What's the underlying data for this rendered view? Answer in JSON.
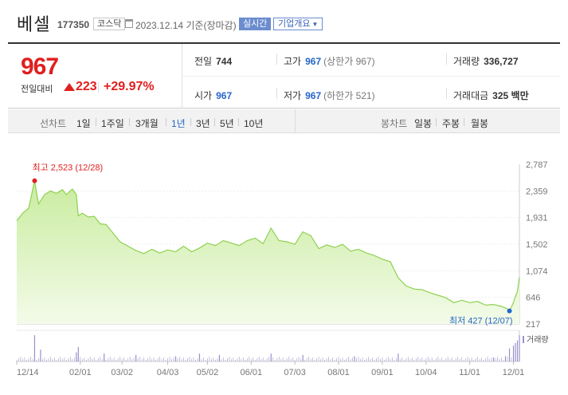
{
  "header": {
    "name": "베셀",
    "code": "177350",
    "market": "코스닥",
    "date": "2023.12.14 기준(장마감)",
    "realtime_label": "실시간",
    "company_label": "기업개요"
  },
  "quote": {
    "price": "967",
    "change_label": "전일대비",
    "change_value": "223",
    "change_pct": "+29.97%",
    "prev_label": "전일",
    "prev_value": "744",
    "high_label": "고가",
    "high_value": "967",
    "high_sub": "(상한가 967)",
    "volume_label": "거래량",
    "volume_value": "336,727",
    "open_label": "시가",
    "open_value": "967",
    "low_label": "저가",
    "low_value": "967",
    "low_sub": "(하한가 521)",
    "amount_label": "거래대금",
    "amount_value": "325 백만"
  },
  "periods": {
    "line_label": "선차트",
    "items": [
      "1일",
      "1주일",
      "3개월",
      "1년",
      "3년",
      "5년",
      "10년"
    ],
    "active": "1년",
    "candle_label": "봉차트",
    "candle_items": [
      "일봉",
      "주봉",
      "월봉"
    ]
  },
  "colors": {
    "up": "#e0201f",
    "blue": "#2566c8",
    "area_fill": "#dff4c6",
    "area_line": "#8fd14f"
  },
  "chart_data": {
    "type": "area",
    "y_ticks": [
      "2,787",
      "2,359",
      "1,931",
      "1,502",
      "1,074",
      "646",
      "217"
    ],
    "y_range": [
      217,
      2787
    ],
    "x_ticks": [
      "12/14",
      "02/01",
      "03/02",
      "04/03",
      "05/02",
      "06/01",
      "07/03",
      "08/01",
      "09/01",
      "10/04",
      "11/01",
      "12/01"
    ],
    "x_tick_index": [
      0,
      32,
      53,
      76,
      96,
      118,
      140,
      162,
      184,
      206,
      228,
      250
    ],
    "n_points": 254,
    "high_annotation": "최고 2,523 (12/28)",
    "low_annotation": "최저 427 (12/07)",
    "volume_label": "거래량",
    "series_points": [
      [
        0,
        1880
      ],
      [
        3,
        2000
      ],
      [
        6,
        2080
      ],
      [
        9,
        2523
      ],
      [
        11,
        2150
      ],
      [
        14,
        2300
      ],
      [
        17,
        2360
      ],
      [
        20,
        2320
      ],
      [
        23,
        2380
      ],
      [
        25,
        2300
      ],
      [
        28,
        2390
      ],
      [
        30,
        2300
      ],
      [
        31,
        1960
      ],
      [
        33,
        2000
      ],
      [
        36,
        1940
      ],
      [
        39,
        1950
      ],
      [
        42,
        1830
      ],
      [
        45,
        1820
      ],
      [
        48,
        1700
      ],
      [
        52,
        1540
      ],
      [
        56,
        1470
      ],
      [
        60,
        1400
      ],
      [
        64,
        1350
      ],
      [
        68,
        1420
      ],
      [
        72,
        1360
      ],
      [
        76,
        1410
      ],
      [
        80,
        1380
      ],
      [
        84,
        1470
      ],
      [
        88,
        1380
      ],
      [
        92,
        1440
      ],
      [
        96,
        1520
      ],
      [
        100,
        1480
      ],
      [
        104,
        1560
      ],
      [
        108,
        1520
      ],
      [
        112,
        1480
      ],
      [
        116,
        1560
      ],
      [
        120,
        1600
      ],
      [
        124,
        1510
      ],
      [
        128,
        1760
      ],
      [
        132,
        1560
      ],
      [
        136,
        1540
      ],
      [
        140,
        1500
      ],
      [
        144,
        1700
      ],
      [
        148,
        1640
      ],
      [
        152,
        1430
      ],
      [
        156,
        1490
      ],
      [
        160,
        1450
      ],
      [
        164,
        1500
      ],
      [
        168,
        1390
      ],
      [
        172,
        1420
      ],
      [
        176,
        1360
      ],
      [
        180,
        1320
      ],
      [
        184,
        1260
      ],
      [
        188,
        1220
      ],
      [
        192,
        960
      ],
      [
        196,
        830
      ],
      [
        200,
        780
      ],
      [
        204,
        770
      ],
      [
        208,
        720
      ],
      [
        212,
        680
      ],
      [
        216,
        640
      ],
      [
        220,
        560
      ],
      [
        224,
        600
      ],
      [
        228,
        560
      ],
      [
        232,
        580
      ],
      [
        236,
        520
      ],
      [
        240,
        530
      ],
      [
        244,
        500
      ],
      [
        247,
        460
      ],
      [
        248,
        427
      ],
      [
        250,
        560
      ],
      [
        251,
        660
      ],
      [
        252,
        744
      ],
      [
        253,
        967
      ]
    ],
    "volume_spikes": [
      [
        9,
        1.0
      ],
      [
        12,
        0.45
      ],
      [
        30,
        0.35
      ],
      [
        31,
        0.55
      ],
      [
        44,
        0.3
      ],
      [
        60,
        0.25
      ],
      [
        80,
        0.2
      ],
      [
        92,
        0.3
      ],
      [
        102,
        0.25
      ],
      [
        128,
        0.3
      ],
      [
        144,
        0.25
      ],
      [
        170,
        0.2
      ],
      [
        192,
        0.3
      ],
      [
        240,
        0.15
      ],
      [
        246,
        0.2
      ],
      [
        248,
        0.5
      ],
      [
        250,
        0.6
      ],
      [
        251,
        0.7
      ],
      [
        252,
        0.8
      ],
      [
        253,
        1.0
      ]
    ]
  }
}
